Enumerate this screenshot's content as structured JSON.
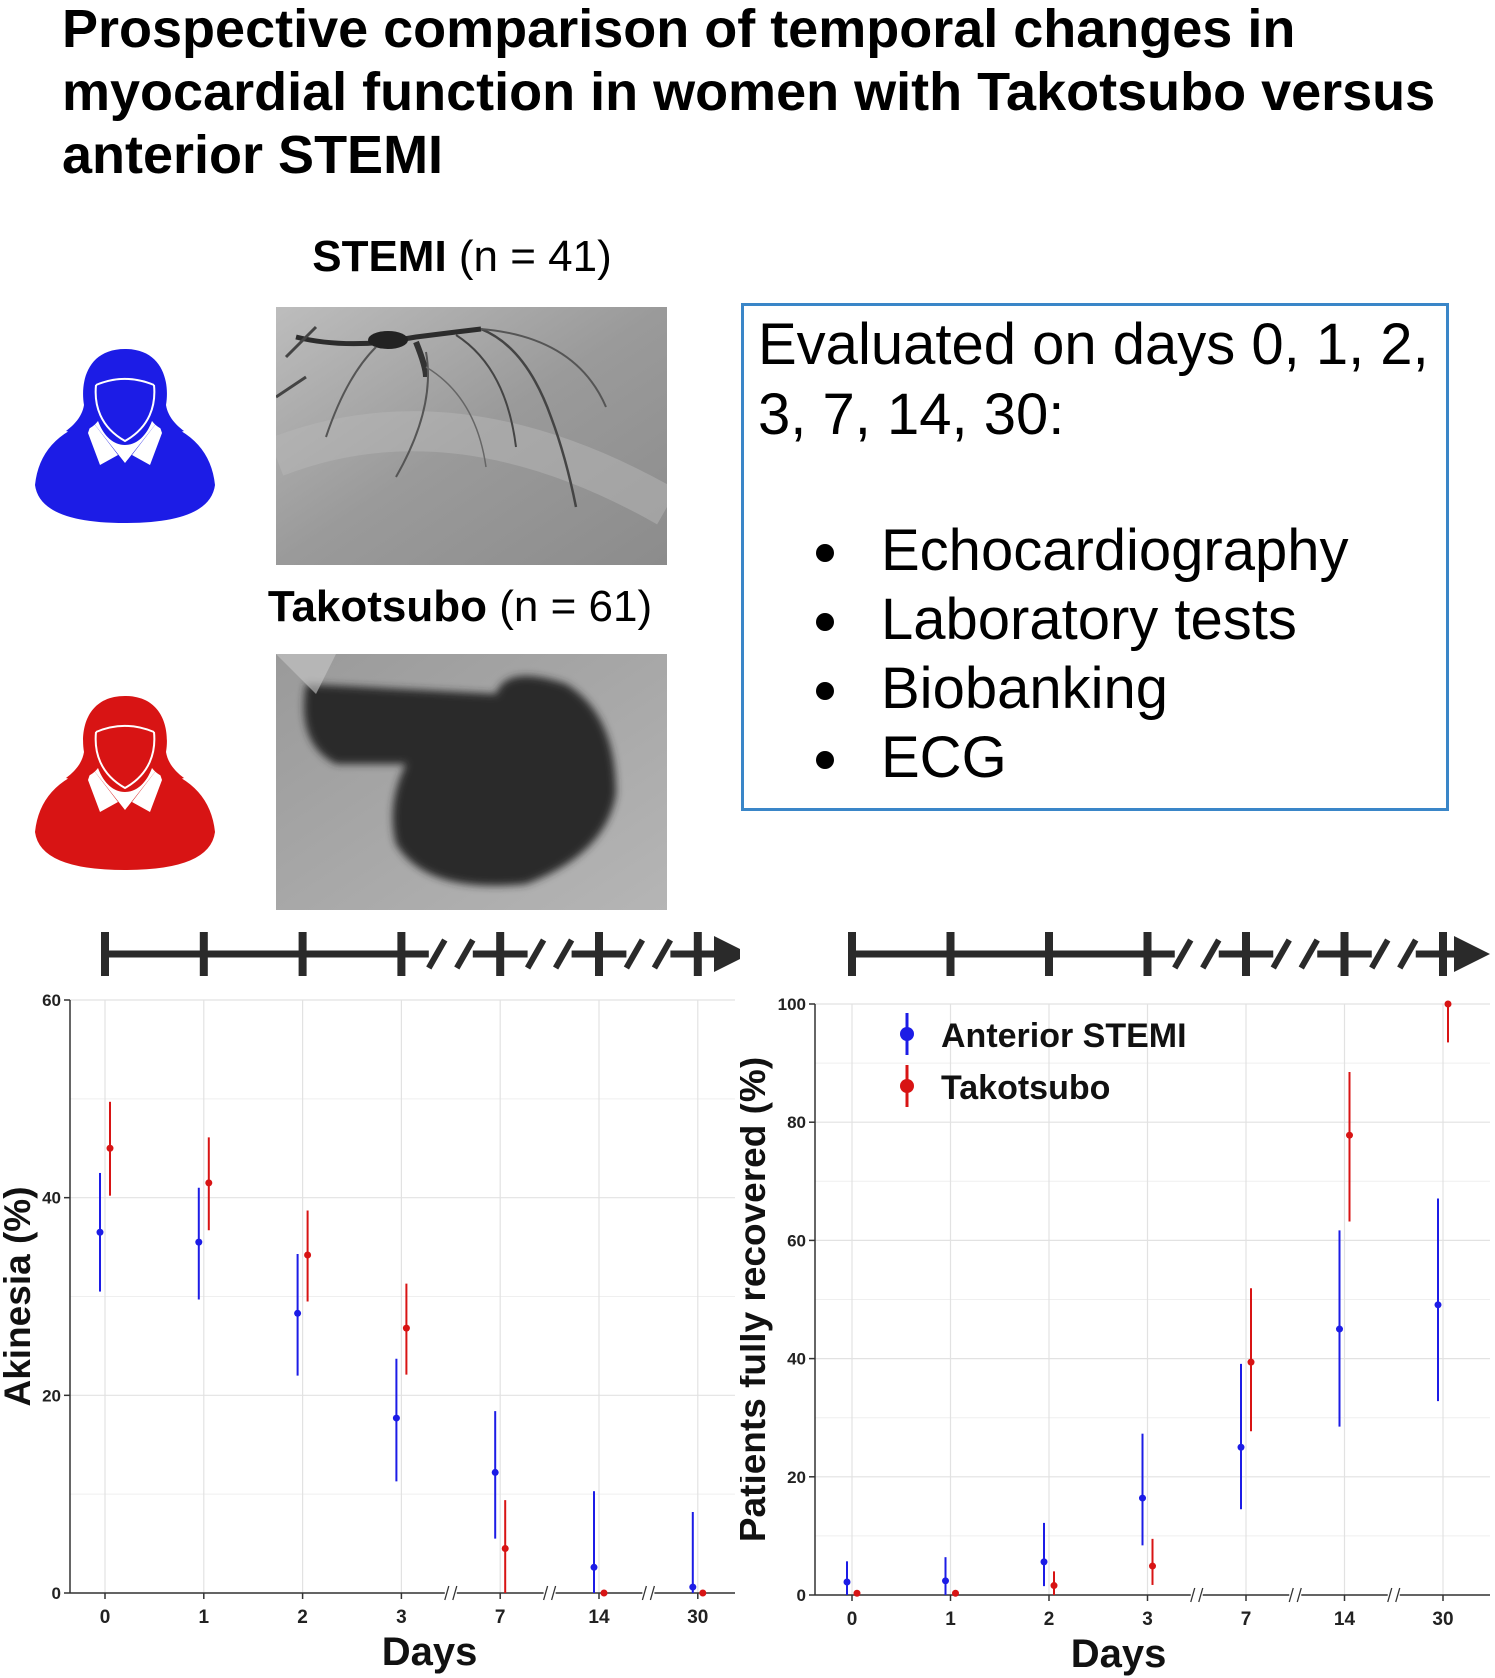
{
  "title": "Prospective comparison of temporal changes in myocardial function in women with Takotsubo versus anterior STEMI",
  "groups": {
    "stemi": {
      "name": "STEMI",
      "n": "(n = 41)",
      "color": "#1c1ce6"
    },
    "takotsubo": {
      "name": "Takotsubo",
      "n": "(n = 61)",
      "color": "#d81414"
    }
  },
  "evaluation": {
    "title": "Evaluated on days 0, 1, 2, 3, 7, 14, 30:",
    "items": [
      "Echocardiography",
      "Laboratory tests",
      "Biobanking",
      "ECG"
    ],
    "border_color": "#3a86c8"
  },
  "chart_data": [
    {
      "type": "scatter",
      "title": "",
      "xlabel": "Days",
      "ylabel": "Akinesia (%)",
      "categories": [
        "0",
        "1",
        "2",
        "3",
        "7",
        "14",
        "30"
      ],
      "ylim": [
        0,
        60
      ],
      "yticks": [
        0,
        20,
        40,
        60
      ],
      "grid": true,
      "axis_breaks_after": [
        "3",
        "7",
        "14"
      ],
      "series": [
        {
          "name": "Anterior STEMI",
          "color": "#1c1ce6",
          "values": [
            36.5,
            35.5,
            28.3,
            17.7,
            12.2,
            2.6,
            0.6
          ],
          "lower": [
            30.5,
            29.7,
            22.0,
            11.3,
            5.5,
            0.0,
            0.0
          ],
          "upper": [
            42.5,
            41.0,
            34.3,
            23.7,
            18.4,
            10.3,
            8.2
          ]
        },
        {
          "name": "Takotsubo",
          "color": "#d81414",
          "values": [
            45.0,
            41.5,
            34.2,
            26.8,
            4.5,
            0.0,
            0.0
          ],
          "lower": [
            40.2,
            36.7,
            29.5,
            22.1,
            0.0,
            0.0,
            0.0
          ],
          "upper": [
            49.7,
            46.1,
            38.7,
            31.3,
            9.4,
            0.0,
            0.0
          ]
        }
      ]
    },
    {
      "type": "scatter",
      "title": "",
      "xlabel": "Days",
      "ylabel": "Patients fully recovered (%)",
      "categories": [
        "0",
        "1",
        "2",
        "3",
        "7",
        "14",
        "30"
      ],
      "ylim": [
        0,
        100
      ],
      "yticks": [
        0,
        20,
        40,
        60,
        80,
        100
      ],
      "grid": true,
      "legend_placement": "top-left",
      "axis_breaks_after": [
        "3",
        "7",
        "14"
      ],
      "series": [
        {
          "name": "Anterior STEMI",
          "color": "#1c1ce6",
          "values": [
            2.2,
            2.4,
            5.6,
            16.4,
            25.0,
            45.0,
            49.1
          ],
          "lower": [
            0.0,
            0.0,
            1.5,
            8.4,
            14.5,
            28.5,
            32.8
          ],
          "upper": [
            5.7,
            6.4,
            12.2,
            27.3,
            39.1,
            61.7,
            67.1
          ]
        },
        {
          "name": "Takotsubo",
          "color": "#d81414",
          "values": [
            0.3,
            0.3,
            1.6,
            4.9,
            39.4,
            77.8,
            100.0
          ],
          "lower": [
            0.0,
            0.0,
            0.0,
            1.7,
            27.7,
            63.2,
            93.5
          ],
          "upper": [
            0.5,
            0.6,
            4.0,
            9.5,
            51.9,
            88.5,
            100.0
          ]
        }
      ]
    }
  ]
}
